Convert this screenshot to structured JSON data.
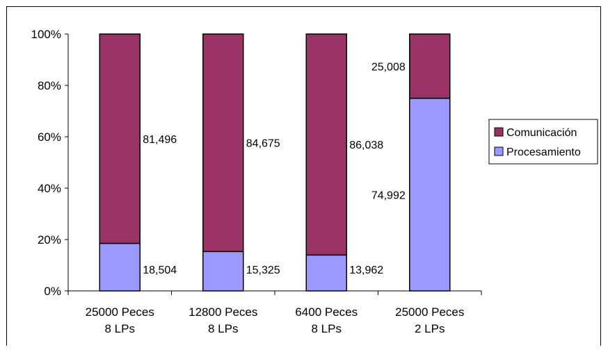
{
  "chart_data": {
    "type": "bar",
    "stacked": "percent",
    "categories": [
      [
        "25000 Peces",
        "8 LPs"
      ],
      [
        "12800 Peces",
        "8 LPs"
      ],
      [
        "6400 Peces",
        "8 LPs"
      ],
      [
        "25000 Peces",
        "2 LPs"
      ]
    ],
    "series": [
      {
        "name": "Procesamiento",
        "color": "#9999ff",
        "values": [
          18.504,
          15.325,
          13.962,
          74.992
        ],
        "labels": [
          "18,504",
          "15,325",
          "13,962",
          "74,992"
        ]
      },
      {
        "name": "Comunicación",
        "color": "#993366",
        "values": [
          81.496,
          84.675,
          86.038,
          25.008
        ],
        "labels": [
          "81,496",
          "84,675",
          "86,038",
          "25,008"
        ]
      }
    ],
    "y_ticks": [
      "0%",
      "20%",
      "40%",
      "60%",
      "80%",
      "100%"
    ],
    "ylim": [
      0,
      100
    ],
    "legend_position": "right",
    "legend": [
      "Comunicación",
      "Procesamiento"
    ]
  }
}
